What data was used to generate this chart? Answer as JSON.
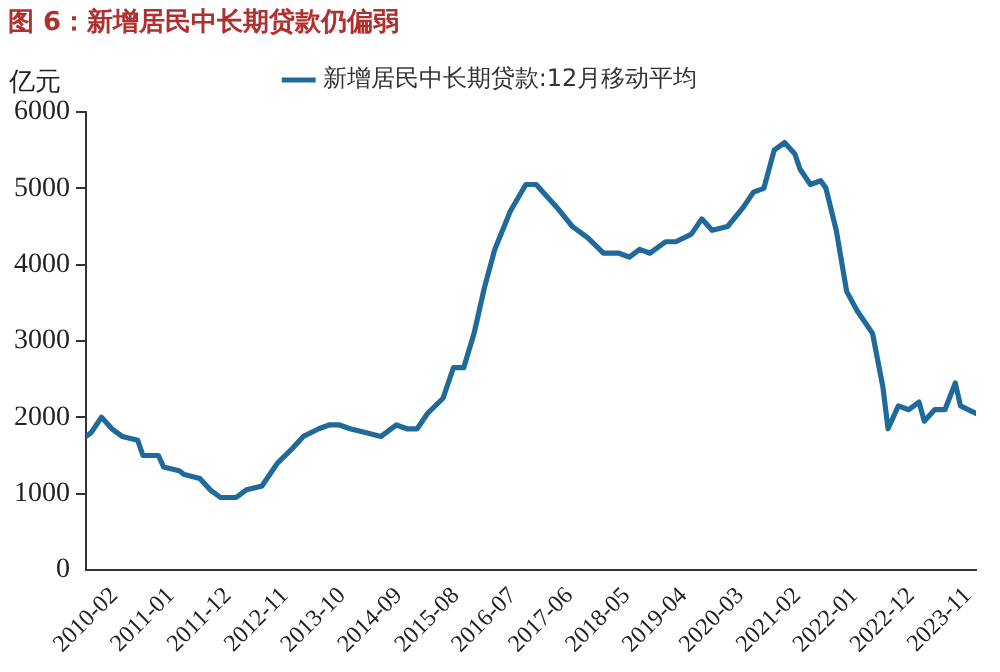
{
  "chart_data": {
    "type": "line",
    "title": "图 6：新增居民中长期贷款仍偏弱",
    "ylabel": "亿元",
    "x": [
      "2010-02",
      "2010-03",
      "2010-05",
      "2010-07",
      "2010-09",
      "2010-12",
      "2011-01",
      "2011-04",
      "2011-05",
      "2011-08",
      "2011-09",
      "2011-12",
      "2012-02",
      "2012-04",
      "2012-07",
      "2012-09",
      "2012-12",
      "2013-02",
      "2013-03",
      "2013-06",
      "2013-08",
      "2013-11",
      "2014-01",
      "2014-03",
      "2014-05",
      "2014-08",
      "2014-11",
      "2014-12",
      "2015-02",
      "2015-04",
      "2015-06",
      "2015-08",
      "2015-11",
      "2016-01",
      "2016-03",
      "2016-05",
      "2016-07",
      "2016-09",
      "2016-12",
      "2017-03",
      "2017-05",
      "2017-07",
      "2017-09",
      "2017-12",
      "2018-03",
      "2018-06",
      "2018-09",
      "2018-11",
      "2019-01",
      "2019-03",
      "2019-06",
      "2019-08",
      "2019-11",
      "2020-01",
      "2020-03",
      "2020-06",
      "2020-09",
      "2020-11",
      "2021-01",
      "2021-03",
      "2021-05",
      "2021-07",
      "2021-08",
      "2021-10",
      "2021-12",
      "2022-01",
      "2022-03",
      "2022-05",
      "2022-07",
      "2022-10",
      "2022-12",
      "2023-01",
      "2023-03",
      "2023-05",
      "2023-07",
      "2023-08",
      "2023-10",
      "2023-12",
      "2024-02",
      "2024-03",
      "2024-06"
    ],
    "series": [
      {
        "name": "新增居民中长期贷款:12月移动平均",
        "color": "#1f6a9a",
        "values": [
          1750,
          1800,
          2000,
          1850,
          1750,
          1700,
          1500,
          1500,
          1350,
          1300,
          1250,
          1200,
          1050,
          950,
          950,
          1050,
          1100,
          1300,
          1400,
          1600,
          1750,
          1850,
          1900,
          1900,
          1850,
          1800,
          1750,
          1800,
          1900,
          1850,
          1850,
          2050,
          2250,
          2650,
          2650,
          3100,
          3700,
          4200,
          4700,
          5050,
          5050,
          4900,
          4750,
          4500,
          4350,
          4150,
          4150,
          4100,
          4200,
          4150,
          4300,
          4300,
          4400,
          4600,
          4450,
          4500,
          4750,
          4950,
          5000,
          5500,
          5600,
          5450,
          5250,
          5050,
          5100,
          5000,
          4450,
          3650,
          3400,
          3100,
          2400,
          1850,
          2150,
          2100,
          2200,
          1950,
          2100,
          2100,
          2450,
          2150,
          2050
        ]
      }
    ],
    "xlim": [
      "2010-02",
      "2024-06"
    ],
    "xticks": [
      "2010-02",
      "2011-01",
      "2011-12",
      "2012-11",
      "2013-10",
      "2014-09",
      "2015-08",
      "2016-07",
      "2017-06",
      "2018-05",
      "2019-04",
      "2020-03",
      "2021-02",
      "2022-01",
      "2022-12",
      "2023-11"
    ],
    "ylim": [
      0,
      6000
    ],
    "yticks": [
      0,
      1000,
      2000,
      3000,
      4000,
      5000,
      6000
    ],
    "grid": false,
    "legend": "top",
    "marker": "none",
    "line_style": "solid"
  }
}
